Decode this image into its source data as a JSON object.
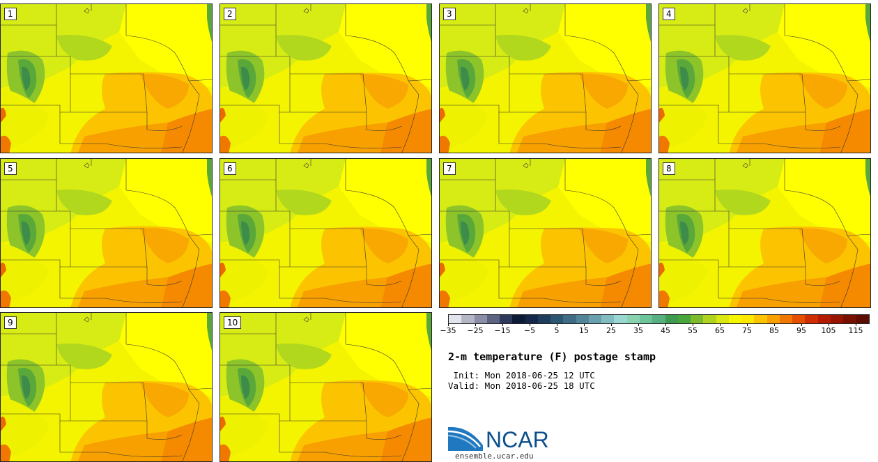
{
  "panels": [
    {
      "label": "1"
    },
    {
      "label": "2"
    },
    {
      "label": "3"
    },
    {
      "label": "4"
    },
    {
      "label": "5"
    },
    {
      "label": "6"
    },
    {
      "label": "7"
    },
    {
      "label": "8"
    },
    {
      "label": "9"
    },
    {
      "label": "10"
    }
  ],
  "colorbar": {
    "colors": [
      "#e4e4ee",
      "#b4b6c8",
      "#8a8ea6",
      "#5c6482",
      "#2e3a5c",
      "#0e1a36",
      "#14284a",
      "#1e3c5c",
      "#2c5570",
      "#3e6c84",
      "#52849a",
      "#68a0ae",
      "#80bcc0",
      "#98d8d0",
      "#88d2b0",
      "#6ec49a",
      "#56b080",
      "#3e9a4e",
      "#4aa63c",
      "#7cbc2c",
      "#aed420",
      "#d8e810",
      "#f6f600",
      "#ffe800",
      "#fcc400",
      "#f8a000",
      "#f07800",
      "#e45000",
      "#d02e00",
      "#b41a00",
      "#961400",
      "#781000",
      "#5c0c00"
    ],
    "ticks": [
      "−35",
      "−25",
      "−15",
      "−5",
      "5",
      "15",
      "25",
      "35",
      "45",
      "55",
      "65",
      "75",
      "85",
      "95",
      "105",
      "115"
    ],
    "min": -35,
    "max": 120,
    "units": "F"
  },
  "title": "2-m temperature (F) postage stamp",
  "init": " Init: Mon 2018-06-25 12 UTC",
  "valid": "Valid: Mon 2018-06-25 18 UTC",
  "logo": {
    "text": "NCAR",
    "color": "#0b4f8f"
  },
  "site": "ensemble.ucar.edu"
}
